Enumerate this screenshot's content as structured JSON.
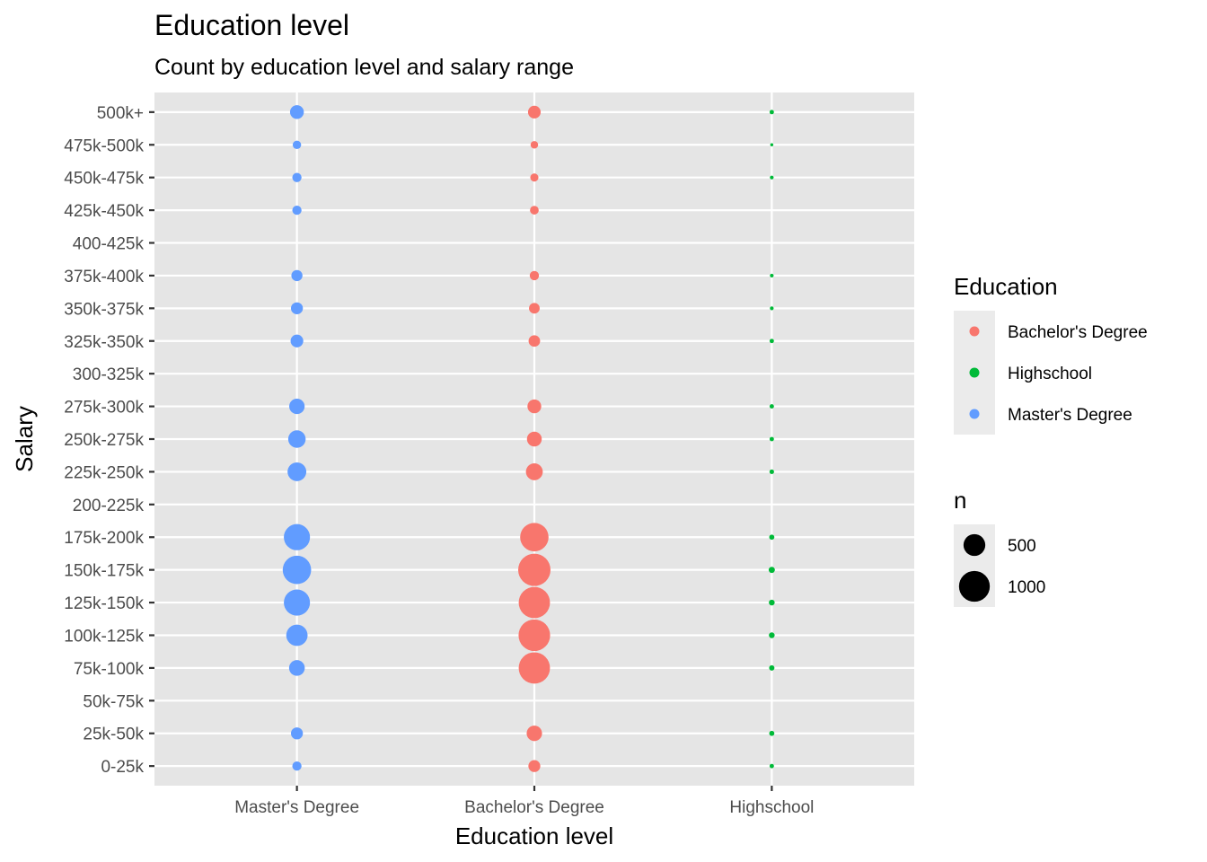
{
  "chart_data": {
    "type": "scatter",
    "title": "Education level",
    "subtitle": "Count by education level and salary range",
    "xlabel": "Education level",
    "ylabel": "Salary",
    "x_categories": [
      "Master's Degree",
      "Bachelor's Degree",
      "Highschool"
    ],
    "y_categories": [
      "0-25k",
      "25k-50k",
      "50k-75k",
      "75k-100k",
      "100k-125k",
      "125k-150k",
      "150k-175k",
      "175k-200k",
      "200-225k",
      "225k-250k",
      "250k-275k",
      "275k-300k",
      "300-325k",
      "325k-350k",
      "350k-375k",
      "375k-400k",
      "400-425k",
      "425k-450k",
      "450k-475k",
      "475k-500k",
      "500k+"
    ],
    "grid": true,
    "size_variable": "n",
    "color_variable": "Education",
    "series": [
      {
        "name": "Bachelor's Degree",
        "color": "#F8766D",
        "points": [
          {
            "x": "Bachelor's Degree",
            "y": "0-25k",
            "n": 150
          },
          {
            "x": "Bachelor's Degree",
            "y": "25k-50k",
            "n": 250
          },
          {
            "x": "Bachelor's Degree",
            "y": "75k-100k",
            "n": 1030
          },
          {
            "x": "Bachelor's Degree",
            "y": "100k-125k",
            "n": 1050
          },
          {
            "x": "Bachelor's Degree",
            "y": "125k-150k",
            "n": 1030
          },
          {
            "x": "Bachelor's Degree",
            "y": "150k-175k",
            "n": 1100
          },
          {
            "x": "Bachelor's Degree",
            "y": "175k-200k",
            "n": 850
          },
          {
            "x": "Bachelor's Degree",
            "y": "225k-250k",
            "n": 300
          },
          {
            "x": "Bachelor's Degree",
            "y": "250k-275k",
            "n": 230
          },
          {
            "x": "Bachelor's Degree",
            "y": "275k-300k",
            "n": 200
          },
          {
            "x": "Bachelor's Degree",
            "y": "325k-350k",
            "n": 140
          },
          {
            "x": "Bachelor's Degree",
            "y": "350k-375k",
            "n": 120
          },
          {
            "x": "Bachelor's Degree",
            "y": "375k-400k",
            "n": 90
          },
          {
            "x": "Bachelor's Degree",
            "y": "425k-450k",
            "n": 80
          },
          {
            "x": "Bachelor's Degree",
            "y": "450k-475k",
            "n": 70
          },
          {
            "x": "Bachelor's Degree",
            "y": "475k-500k",
            "n": 60
          },
          {
            "x": "Bachelor's Degree",
            "y": "500k+",
            "n": 170
          }
        ]
      },
      {
        "name": "Highschool",
        "color": "#00BA38",
        "points": [
          {
            "x": "Highschool",
            "y": "0-25k",
            "n": 20
          },
          {
            "x": "Highschool",
            "y": "25k-50k",
            "n": 28
          },
          {
            "x": "Highschool",
            "y": "75k-100k",
            "n": 30
          },
          {
            "x": "Highschool",
            "y": "100k-125k",
            "n": 35
          },
          {
            "x": "Highschool",
            "y": "125k-150k",
            "n": 35
          },
          {
            "x": "Highschool",
            "y": "150k-175k",
            "n": 40
          },
          {
            "x": "Highschool",
            "y": "175k-200k",
            "n": 28
          },
          {
            "x": "Highschool",
            "y": "225k-250k",
            "n": 22
          },
          {
            "x": "Highschool",
            "y": "250k-275k",
            "n": 20
          },
          {
            "x": "Highschool",
            "y": "275k-300k",
            "n": 20
          },
          {
            "x": "Highschool",
            "y": "325k-350k",
            "n": 20
          },
          {
            "x": "Highschool",
            "y": "350k-375k",
            "n": 15
          },
          {
            "x": "Highschool",
            "y": "375k-400k",
            "n": 15
          },
          {
            "x": "Highschool",
            "y": "450k-475k",
            "n": 15
          },
          {
            "x": "Highschool",
            "y": "475k-500k",
            "n": 10
          },
          {
            "x": "Highschool",
            "y": "500k+",
            "n": 20
          }
        ]
      },
      {
        "name": "Master's Degree",
        "color": "#619CFF",
        "points": [
          {
            "x": "Master's Degree",
            "y": "0-25k",
            "n": 90
          },
          {
            "x": "Master's Degree",
            "y": "25k-50k",
            "n": 150
          },
          {
            "x": "Master's Degree",
            "y": "75k-100k",
            "n": 260
          },
          {
            "x": "Master's Degree",
            "y": "100k-125k",
            "n": 480
          },
          {
            "x": "Master's Degree",
            "y": "125k-150k",
            "n": 720
          },
          {
            "x": "Master's Degree",
            "y": "150k-175k",
            "n": 850
          },
          {
            "x": "Master's Degree",
            "y": "175k-200k",
            "n": 720
          },
          {
            "x": "Master's Degree",
            "y": "225k-250k",
            "n": 370
          },
          {
            "x": "Master's Degree",
            "y": "250k-275k",
            "n": 320
          },
          {
            "x": "Master's Degree",
            "y": "275k-300k",
            "n": 250
          },
          {
            "x": "Master's Degree",
            "y": "325k-350k",
            "n": 170
          },
          {
            "x": "Master's Degree",
            "y": "350k-375k",
            "n": 150
          },
          {
            "x": "Master's Degree",
            "y": "375k-400k",
            "n": 130
          },
          {
            "x": "Master's Degree",
            "y": "425k-450k",
            "n": 90
          },
          {
            "x": "Master's Degree",
            "y": "450k-475k",
            "n": 90
          },
          {
            "x": "Master's Degree",
            "y": "475k-500k",
            "n": 75
          },
          {
            "x": "Master's Degree",
            "y": "500k+",
            "n": 200
          }
        ]
      }
    ],
    "legend": {
      "placement": "right",
      "color_title": "Education",
      "color_entries": [
        "Bachelor's Degree",
        "Highschool",
        "Master's Degree"
      ],
      "size_title": "n",
      "size_entries": [
        500,
        1000
      ]
    },
    "theme": {
      "panel_background": "#E5E5E5",
      "grid_color": "#FFFFFF",
      "legend_key_background": "#EBEBEB",
      "tick_color": "#333333",
      "tick_label_color": "#4D4D4D"
    }
  }
}
